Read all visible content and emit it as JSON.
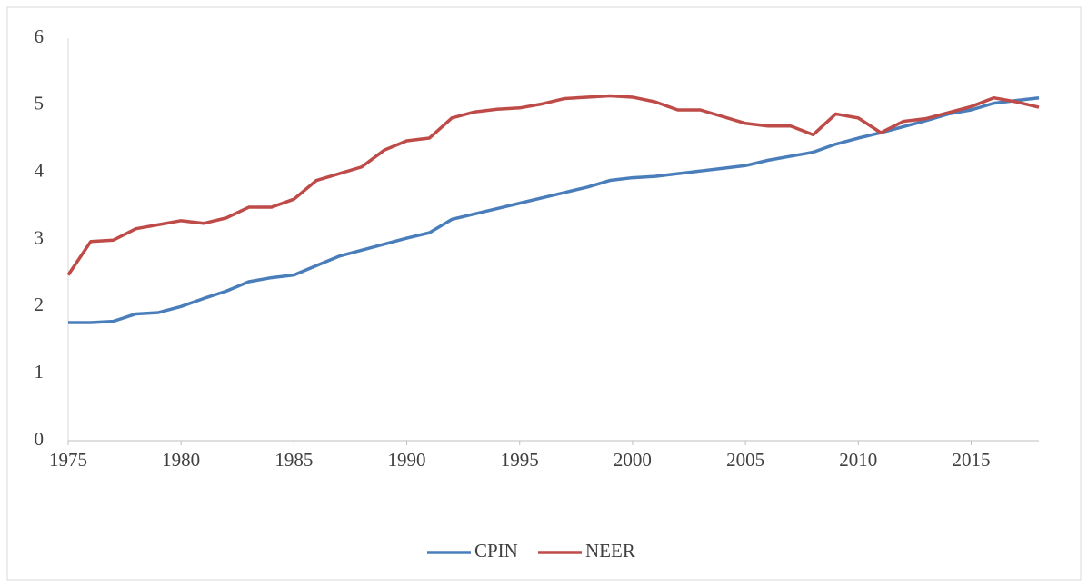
{
  "chart_data": {
    "type": "line",
    "x": [
      1975,
      1976,
      1977,
      1978,
      1979,
      1980,
      1981,
      1982,
      1983,
      1984,
      1985,
      1986,
      1987,
      1988,
      1989,
      1990,
      1991,
      1992,
      1993,
      1994,
      1995,
      1996,
      1997,
      1998,
      1999,
      2000,
      2001,
      2002,
      2003,
      2004,
      2005,
      2006,
      2007,
      2008,
      2009,
      2010,
      2011,
      2012,
      2013,
      2014,
      2015,
      2016,
      2017,
      2018
    ],
    "series": [
      {
        "name": "CPIN",
        "color": "#4a7ebb",
        "values": [
          1.76,
          1.76,
          1.78,
          1.89,
          1.91,
          2.0,
          2.12,
          2.23,
          2.37,
          2.43,
          2.47,
          2.61,
          2.75,
          2.84,
          2.93,
          3.02,
          3.1,
          3.3,
          3.38,
          3.46,
          3.54,
          3.62,
          3.7,
          3.78,
          3.88,
          3.92,
          3.94,
          3.98,
          4.02,
          4.06,
          4.1,
          4.18,
          4.24,
          4.3,
          4.42,
          4.51,
          4.59,
          4.68,
          4.77,
          4.87,
          4.93,
          5.03,
          5.07,
          5.11
        ]
      },
      {
        "name": "NEER",
        "color": "#be4b48",
        "values": [
          2.47,
          2.97,
          2.99,
          3.16,
          3.22,
          3.28,
          3.24,
          3.32,
          3.48,
          3.48,
          3.6,
          3.88,
          3.98,
          4.08,
          4.33,
          4.47,
          4.51,
          4.81,
          4.9,
          4.94,
          4.96,
          5.02,
          5.1,
          5.12,
          5.14,
          5.12,
          5.05,
          4.93,
          4.93,
          4.83,
          4.73,
          4.69,
          4.69,
          4.56,
          4.87,
          4.81,
          4.59,
          4.76,
          4.8,
          4.89,
          4.98,
          5.11,
          5.05,
          4.97
        ]
      }
    ],
    "xlim": [
      1975,
      2018
    ],
    "xticks": [
      1975,
      1980,
      1985,
      1990,
      1995,
      2000,
      2005,
      2010,
      2015
    ],
    "ylim": [
      0,
      6
    ],
    "yticks": [
      0,
      1,
      2,
      3,
      4,
      5,
      6
    ],
    "legend": "bottom",
    "grid": false
  }
}
